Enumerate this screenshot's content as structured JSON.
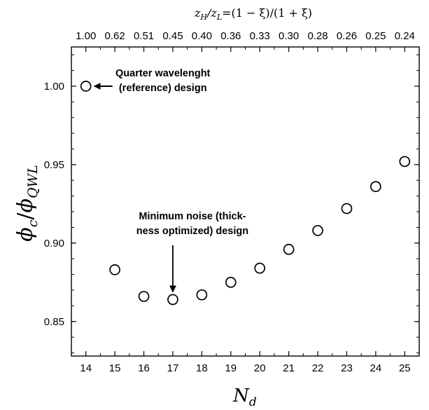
{
  "chart_data": {
    "type": "scatter",
    "marker": "open-circle",
    "xlabel": "N",
    "xlabel_sub": "d",
    "ylabel": "ϕ",
    "ylabel_sub": "c",
    "ylabel_sep": "/",
    "ylabel_den": "ϕ",
    "ylabel_den_sub": "QWL",
    "top_axis_label": "z_H/z_L=(1 − ξ)/(1 + ξ)",
    "top_axis_parts": {
      "z1": "z",
      "z1_sub": "H",
      "slash": "/",
      "z2": "z",
      "z2_sub": "L",
      "rest": "=(1 − ξ)/(1 + ξ)"
    },
    "xlim": [
      13.5,
      25.5
    ],
    "ylim": [
      0.828,
      1.025
    ],
    "x_ticks": [
      "14",
      "15",
      "16",
      "17",
      "18",
      "19",
      "20",
      "21",
      "22",
      "23",
      "24",
      "25"
    ],
    "y_ticks": [
      "0.85",
      "0.90",
      "0.95",
      "1.00"
    ],
    "top_ticks": [
      "1.00",
      "0.62",
      "0.51",
      "0.45",
      "0.40",
      "0.36",
      "0.33",
      "0.30",
      "0.28",
      "0.26",
      "0.25",
      "0.24"
    ],
    "points": [
      {
        "x": 14,
        "y": 1.0
      },
      {
        "x": 15,
        "y": 0.883
      },
      {
        "x": 16,
        "y": 0.866
      },
      {
        "x": 17,
        "y": 0.864
      },
      {
        "x": 18,
        "y": 0.867
      },
      {
        "x": 19,
        "y": 0.875
      },
      {
        "x": 20,
        "y": 0.884
      },
      {
        "x": 21,
        "y": 0.896
      },
      {
        "x": 22,
        "y": 0.908
      },
      {
        "x": 23,
        "y": 0.922
      },
      {
        "x": 24,
        "y": 0.936
      },
      {
        "x": 25,
        "y": 0.952
      }
    ],
    "annotations": [
      {
        "lines": [
          "Quarter wavelenght",
          "(reference) design"
        ],
        "target": {
          "x": 14,
          "y": 1.0
        }
      },
      {
        "lines": [
          "Minimum noise (thick-",
          "ness optimized) design"
        ],
        "target": {
          "x": 17,
          "y": 0.864
        }
      }
    ],
    "grid": false,
    "colors": {
      "marker_edge": "#000000",
      "marker_fill": "#ffffff",
      "axis": "#000000"
    }
  }
}
